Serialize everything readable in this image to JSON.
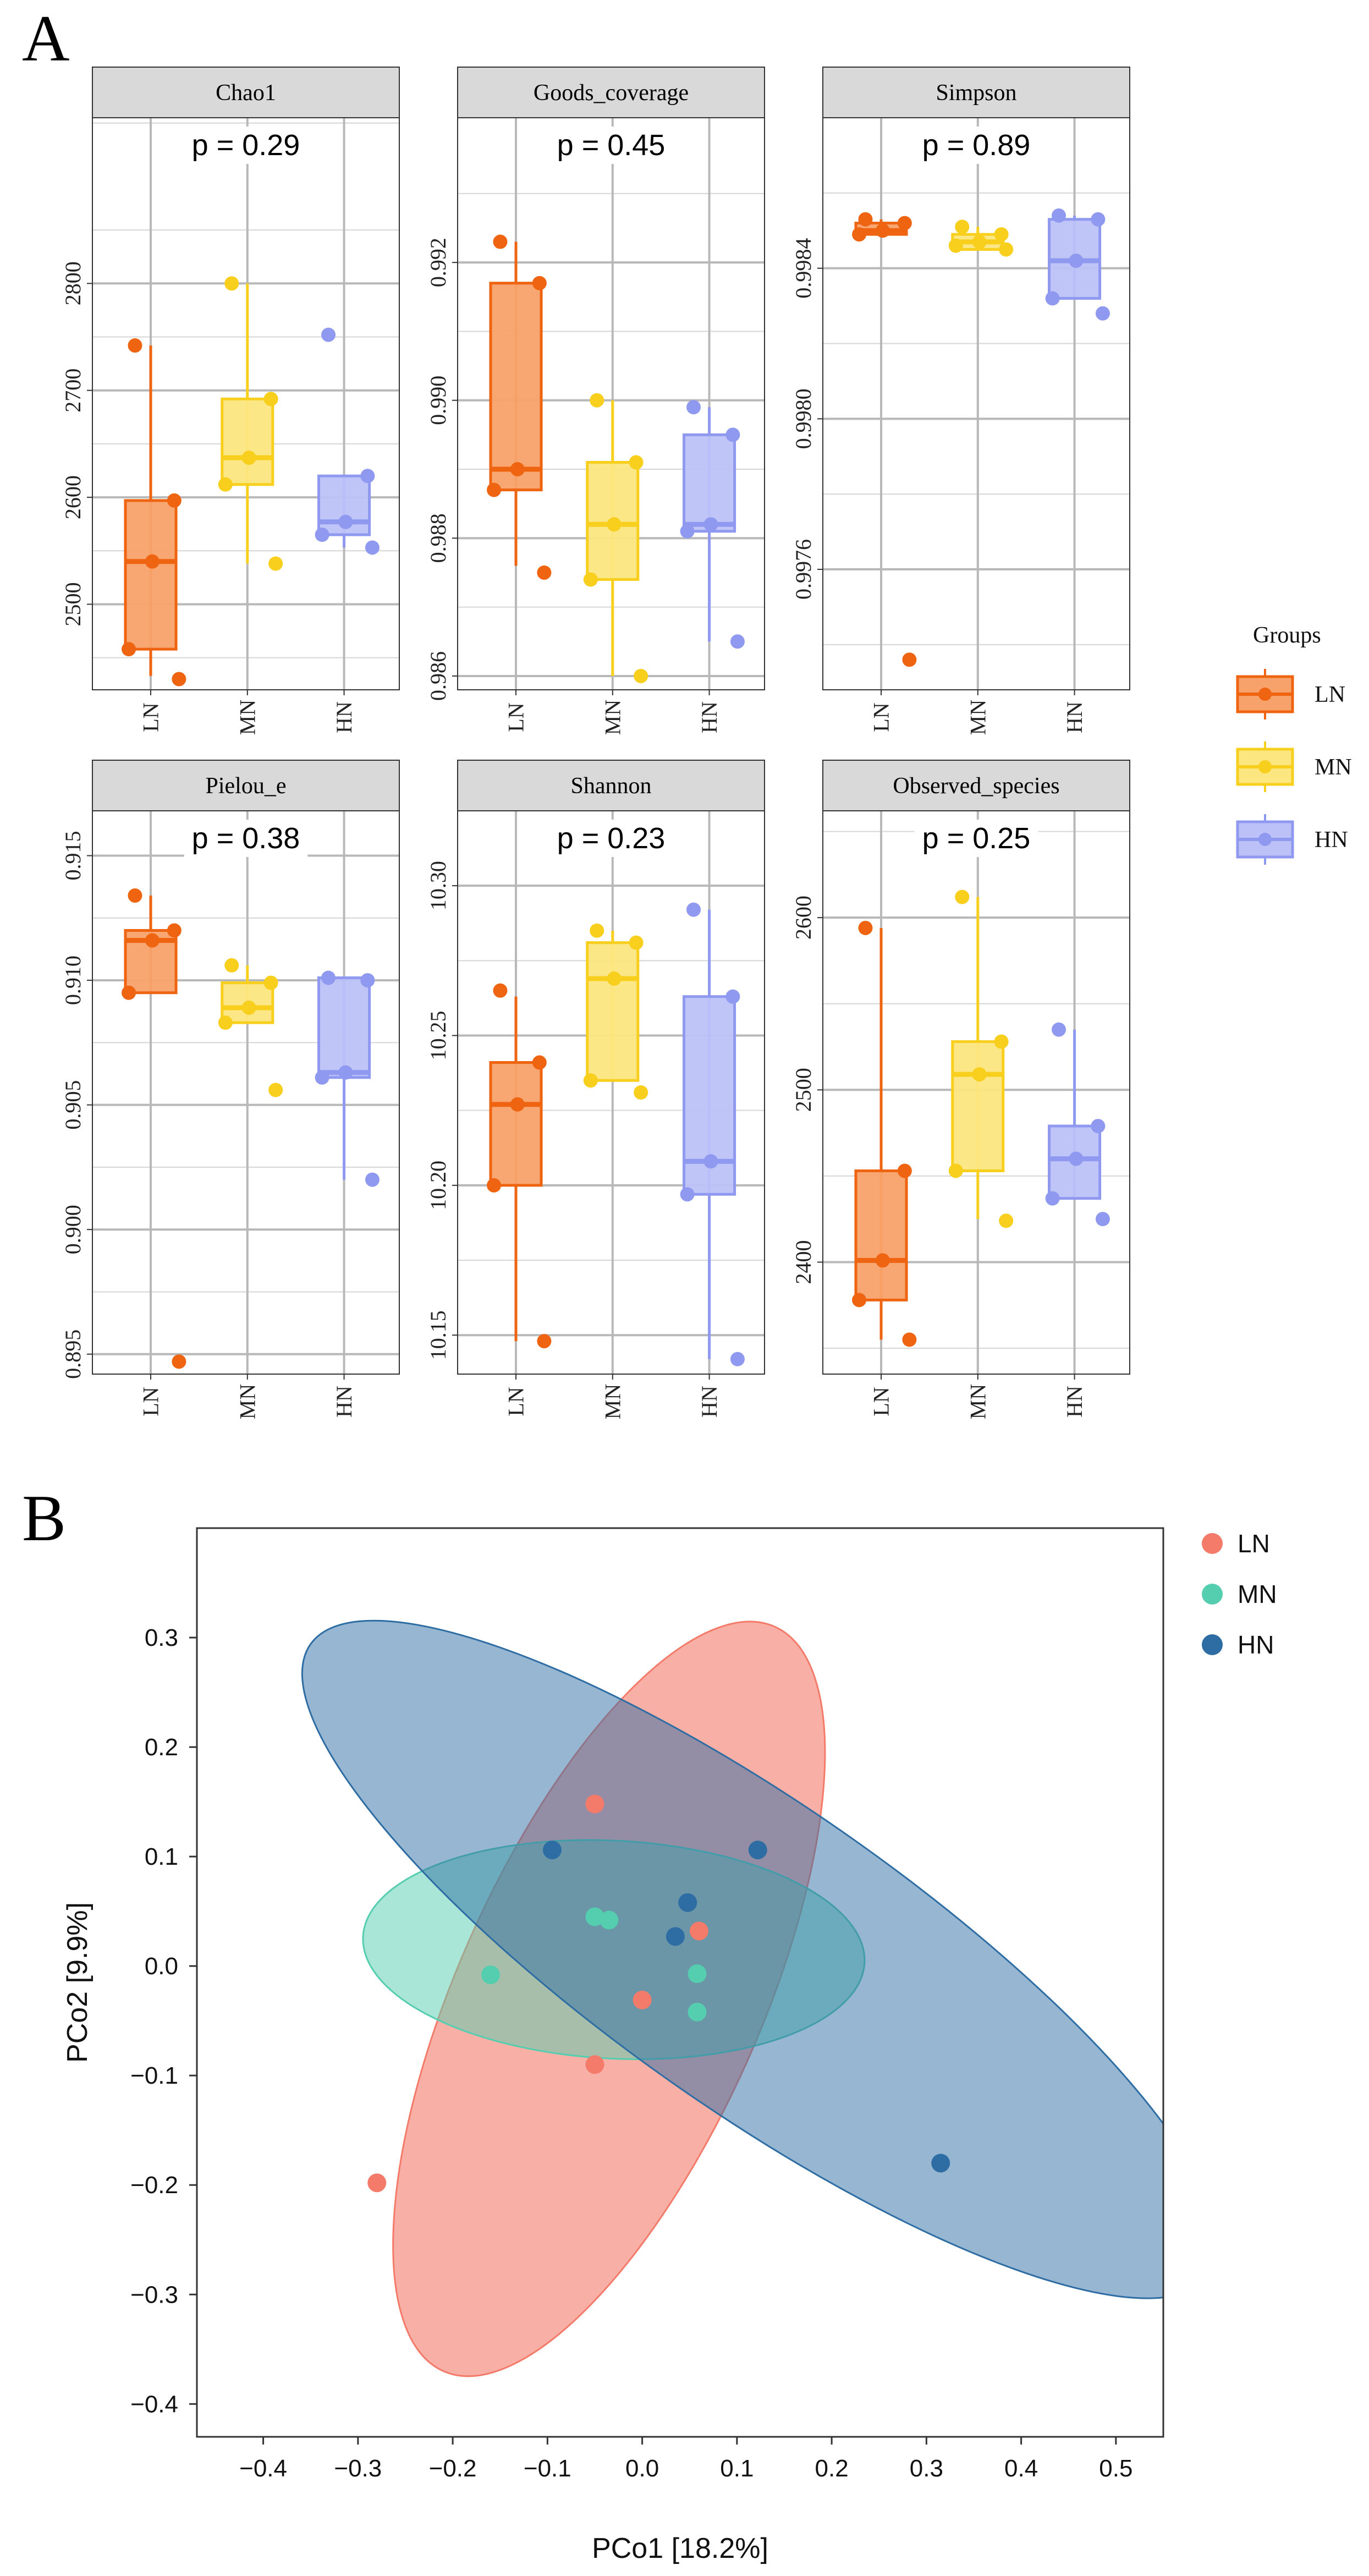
{
  "panel_labels": {
    "a": "A",
    "b": "B"
  },
  "colors": {
    "LN": {
      "fill": "#F8A26B",
      "stroke": "#EF6410",
      "point": "#EF6410"
    },
    "MN": {
      "fill": "#FCE680",
      "stroke": "#F7CF1C",
      "point": "#F7CF1C"
    },
    "HN": {
      "fill": "#BCC2F7",
      "stroke": "#8F99F0",
      "point": "#8F99F0"
    },
    "pcoa_LN": "#F47A6A",
    "pcoa_MN": "#55CDAF",
    "pcoa_HN": "#2E6DA4",
    "strip_bg": "#D9D9D9"
  },
  "legend_a": {
    "title": "Groups",
    "items": [
      {
        "group": "LN",
        "label": "LN"
      },
      {
        "group": "MN",
        "label": "MN"
      },
      {
        "group": "HN",
        "label": "HN"
      }
    ]
  },
  "legend_b": {
    "items": [
      {
        "group": "LN",
        "label": "LN"
      },
      {
        "group": "MN",
        "label": "MN"
      },
      {
        "group": "HN",
        "label": "HN"
      }
    ]
  },
  "chart_data": [
    {
      "type": "box",
      "title": "Chao1",
      "annotation": "p = 0.29",
      "categories": [
        "LN",
        "MN",
        "HN"
      ],
      "ylim": [
        2420,
        2955
      ],
      "yticks": [
        2500,
        2600,
        2700,
        2800
      ],
      "ytick_labels": [
        "2500",
        "2600",
        "2700",
        "2800"
      ],
      "boxes": [
        {
          "group": "LN",
          "q1": 2458,
          "median": 2540,
          "q3": 2597,
          "whislo": 2433,
          "whishi": 2742,
          "points": [
            2742,
            2597,
            2540,
            2458,
            2430
          ]
        },
        {
          "group": "MN",
          "q1": 2612,
          "median": 2637,
          "q3": 2692,
          "whislo": 2538,
          "whishi": 2800,
          "points": [
            2800,
            2692,
            2637,
            2612,
            2538
          ]
        },
        {
          "group": "HN",
          "q1": 2565,
          "median": 2577,
          "q3": 2620,
          "whislo": 2553,
          "whishi": 2620,
          "points": [
            2752,
            2620,
            2577,
            2565,
            2553
          ]
        }
      ]
    },
    {
      "type": "box",
      "title": "Goods_coverage",
      "annotation": "p = 0.45",
      "categories": [
        "LN",
        "MN",
        "HN"
      ],
      "ylim": [
        0.9858,
        0.9941
      ],
      "yticks": [
        0.986,
        0.988,
        0.99,
        0.992
      ],
      "ytick_labels": [
        "0.986",
        "0.988",
        "0.990",
        "0.992"
      ],
      "boxes": [
        {
          "group": "LN",
          "q1": 0.9887,
          "median": 0.989,
          "q3": 0.9917,
          "whislo": 0.9876,
          "whishi": 0.9923,
          "points": [
            0.9923,
            0.9917,
            0.989,
            0.9887,
            0.9875
          ]
        },
        {
          "group": "MN",
          "q1": 0.9874,
          "median": 0.9882,
          "q3": 0.9891,
          "whislo": 0.986,
          "whishi": 0.99,
          "points": [
            0.99,
            0.9891,
            0.9882,
            0.9874,
            0.986
          ]
        },
        {
          "group": "HN",
          "q1": 0.9881,
          "median": 0.9882,
          "q3": 0.9895,
          "whislo": 0.9865,
          "whishi": 0.9899,
          "points": [
            0.9899,
            0.9895,
            0.9882,
            0.9881,
            0.9865
          ]
        }
      ]
    },
    {
      "type": "box",
      "title": "Simpson",
      "annotation": "p = 0.89",
      "categories": [
        "LN",
        "MN",
        "HN"
      ],
      "ylim": [
        0.99728,
        0.9988
      ],
      "yticks": [
        0.9976,
        0.998,
        0.9984
      ],
      "ytick_labels": [
        "0.9976",
        "0.9980",
        "0.9984"
      ],
      "boxes": [
        {
          "group": "LN",
          "q1": 0.99849,
          "median": 0.9985,
          "q3": 0.99852,
          "whislo": 0.99849,
          "whishi": 0.99853,
          "points": [
            0.99853,
            0.99852,
            0.9985,
            0.99849,
            0.99736
          ]
        },
        {
          "group": "MN",
          "q1": 0.99845,
          "median": 0.99847,
          "q3": 0.99849,
          "whislo": 0.99845,
          "whishi": 0.99851,
          "points": [
            0.99851,
            0.99849,
            0.99847,
            0.99846,
            0.99845
          ]
        },
        {
          "group": "HN",
          "q1": 0.99832,
          "median": 0.99842,
          "q3": 0.99853,
          "whislo": 0.99832,
          "whishi": 0.99854,
          "points": [
            0.99854,
            0.99853,
            0.99842,
            0.99832,
            0.99828
          ]
        }
      ]
    },
    {
      "type": "box",
      "title": "Pielou_e",
      "annotation": "p = 0.38",
      "categories": [
        "LN",
        "MN",
        "HN"
      ],
      "ylim": [
        0.8942,
        0.9168
      ],
      "yticks": [
        0.895,
        0.9,
        0.905,
        0.91,
        0.915
      ],
      "ytick_labels": [
        "0.895",
        "0.900",
        "0.905",
        "0.910",
        "0.915"
      ],
      "boxes": [
        {
          "group": "LN",
          "q1": 0.9095,
          "median": 0.9116,
          "q3": 0.912,
          "whislo": 0.9095,
          "whishi": 0.9134,
          "points": [
            0.9134,
            0.912,
            0.9116,
            0.9095,
            0.8947
          ]
        },
        {
          "group": "MN",
          "q1": 0.9083,
          "median": 0.9089,
          "q3": 0.9099,
          "whislo": 0.9083,
          "whishi": 0.9106,
          "points": [
            0.9106,
            0.9099,
            0.9089,
            0.9083,
            0.9056
          ]
        },
        {
          "group": "HN",
          "q1": 0.9061,
          "median": 0.9063,
          "q3": 0.9101,
          "whislo": 0.902,
          "whishi": 0.9101,
          "points": [
            0.9101,
            0.91,
            0.9063,
            0.9061,
            0.902
          ]
        }
      ]
    },
    {
      "type": "box",
      "title": "Shannon",
      "annotation": "p = 0.23",
      "categories": [
        "LN",
        "MN",
        "HN"
      ],
      "ylim": [
        10.137,
        10.325
      ],
      "yticks": [
        10.15,
        10.2,
        10.25,
        10.3
      ],
      "ytick_labels": [
        "10.15",
        "10.20",
        "10.25",
        "10.30"
      ],
      "boxes": [
        {
          "group": "LN",
          "q1": 10.2,
          "median": 10.227,
          "q3": 10.241,
          "whislo": 10.148,
          "whishi": 10.263,
          "points": [
            10.265,
            10.241,
            10.227,
            10.2,
            10.148
          ]
        },
        {
          "group": "MN",
          "q1": 10.235,
          "median": 10.269,
          "q3": 10.281,
          "whislo": 10.235,
          "whishi": 10.285,
          "points": [
            10.285,
            10.281,
            10.269,
            10.235,
            10.231
          ]
        },
        {
          "group": "HN",
          "q1": 10.197,
          "median": 10.208,
          "q3": 10.263,
          "whislo": 10.142,
          "whishi": 10.292,
          "points": [
            10.292,
            10.263,
            10.208,
            10.197,
            10.142
          ]
        }
      ]
    },
    {
      "type": "box",
      "title": "Observed_species",
      "annotation": "p = 0.25",
      "categories": [
        "LN",
        "MN",
        "HN"
      ],
      "ylim": [
        2335,
        2662
      ],
      "yticks": [
        2400,
        2500,
        2600
      ],
      "ytick_labels": [
        "2400",
        "2500",
        "2600"
      ],
      "boxes": [
        {
          "group": "LN",
          "q1": 2378,
          "median": 2401,
          "q3": 2453,
          "whislo": 2355,
          "whishi": 2594,
          "points": [
            2594,
            2453,
            2401,
            2378,
            2355
          ]
        },
        {
          "group": "MN",
          "q1": 2453,
          "median": 2509,
          "q3": 2528,
          "whislo": 2425,
          "whishi": 2612,
          "points": [
            2612,
            2528,
            2509,
            2453,
            2424
          ]
        },
        {
          "group": "HN",
          "q1": 2437,
          "median": 2460,
          "q3": 2479,
          "whislo": 2437,
          "whishi": 2535,
          "points": [
            2535,
            2479,
            2460,
            2437,
            2425
          ]
        }
      ]
    },
    {
      "type": "scatter",
      "xlabel": "PCo1 [18.2%]",
      "ylabel": "PCo2 [9.9%]",
      "xlim": [
        -0.47,
        0.55
      ],
      "ylim": [
        -0.43,
        0.4
      ],
      "xticks": [
        -0.4,
        -0.3,
        -0.2,
        -0.1,
        0.0,
        0.1,
        0.2,
        0.3,
        0.4,
        0.5
      ],
      "xtick_labels": [
        "−0.4",
        "−0.3",
        "−0.2",
        "−0.1",
        "0.0",
        "0.1",
        "0.2",
        "0.3",
        "0.4",
        "0.5"
      ],
      "yticks": [
        -0.4,
        -0.3,
        -0.2,
        -0.1,
        0.0,
        0.1,
        0.2,
        0.3
      ],
      "ytick_labels": [
        "−0.4",
        "−0.3",
        "−0.2",
        "−0.1",
        "0.0",
        "0.1",
        "0.2",
        "0.3"
      ],
      "ellipses": [
        {
          "group": "LN",
          "cx": -0.035,
          "cy": -0.03,
          "rx": 0.43,
          "ry": 0.16,
          "angle_deg": 66,
          "opacity": 0.6
        },
        {
          "group": "MN",
          "cx": -0.03,
          "cy": 0.015,
          "rx": 0.265,
          "ry": 0.115,
          "angle_deg": -3,
          "opacity": 0.5
        },
        {
          "group": "HN",
          "cx": 0.125,
          "cy": 0.006,
          "rx": 0.58,
          "ry": 0.16,
          "angle_deg": -35,
          "opacity": 0.5
        }
      ],
      "series": [
        {
          "group": "LN",
          "points": [
            [
              -0.05,
              0.148
            ],
            [
              -0.28,
              -0.198
            ],
            [
              -0.05,
              -0.09
            ],
            [
              0.0,
              -0.031
            ],
            [
              0.06,
              0.032
            ]
          ]
        },
        {
          "group": "MN",
          "points": [
            [
              -0.05,
              0.045
            ],
            [
              -0.035,
              0.042
            ],
            [
              -0.16,
              -0.008
            ],
            [
              0.058,
              -0.007
            ],
            [
              0.058,
              -0.042
            ]
          ]
        },
        {
          "group": "HN",
          "points": [
            [
              -0.095,
              0.106
            ],
            [
              0.122,
              0.106
            ],
            [
              0.048,
              0.058
            ],
            [
              0.035,
              0.027
            ],
            [
              0.315,
              -0.18
            ]
          ]
        }
      ]
    }
  ]
}
